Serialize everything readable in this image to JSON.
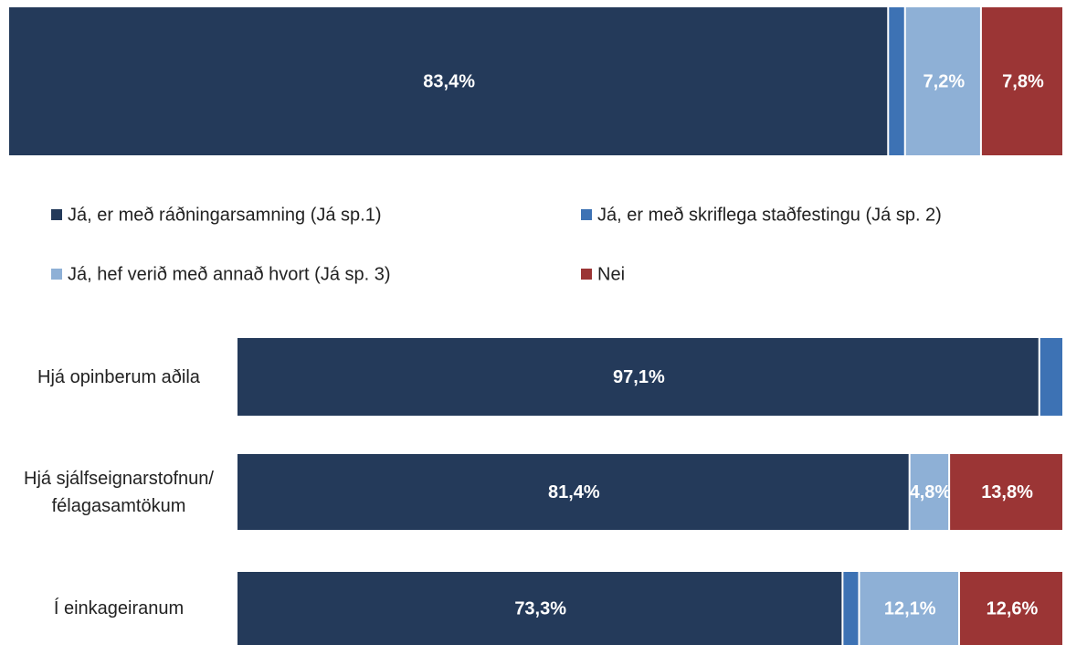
{
  "chart_data": [
    {
      "type": "bar",
      "orientation": "horizontal",
      "stacked": true,
      "xlim": [
        0,
        100
      ],
      "categories": [
        null
      ],
      "series": [
        {
          "name": "Já, er með ráðningarsamning (Já sp.1)",
          "color": "#243a5a",
          "values": [
            83.4
          ],
          "value_labels": [
            "83,4%"
          ]
        },
        {
          "name": "Já, er með skriflega staðfestingu (Já sp. 2)",
          "color": "#3d72b4",
          "values": [
            1.6
          ],
          "value_labels": [
            null
          ]
        },
        {
          "name": "Já, hef verið með annað hvort (Já sp. 3)",
          "color": "#8eb0d6",
          "values": [
            7.2
          ],
          "value_labels": [
            "7,2%"
          ]
        },
        {
          "name": "Nei",
          "color": "#9b3535",
          "values": [
            7.8
          ],
          "value_labels": [
            "7,8%"
          ]
        }
      ]
    },
    {
      "type": "bar",
      "orientation": "horizontal",
      "stacked": true,
      "xlim": [
        0,
        100
      ],
      "categories": [
        "Hjá opinberum aðila",
        "Hjá sjálfseignarstofnun/ félagasamtökum",
        "Í einkageiranum"
      ],
      "series": [
        {
          "color": "#243a5a",
          "values": [
            97.1,
            81.4,
            73.3
          ],
          "value_labels": [
            "97,1%",
            "81,4%",
            "73,3%"
          ]
        },
        {
          "color": "#3d72b4",
          "values": [
            2.9,
            0,
            2.0
          ],
          "value_labels": [
            null,
            null,
            null
          ]
        },
        {
          "color": "#8eb0d6",
          "values": [
            0,
            4.8,
            12.1
          ],
          "value_labels": [
            null,
            "4,8%",
            "12,1%"
          ]
        },
        {
          "color": "#9b3535",
          "values": [
            0,
            13.8,
            12.6
          ],
          "value_labels": [
            null,
            "13,8%",
            "12,6%"
          ]
        }
      ]
    }
  ]
}
